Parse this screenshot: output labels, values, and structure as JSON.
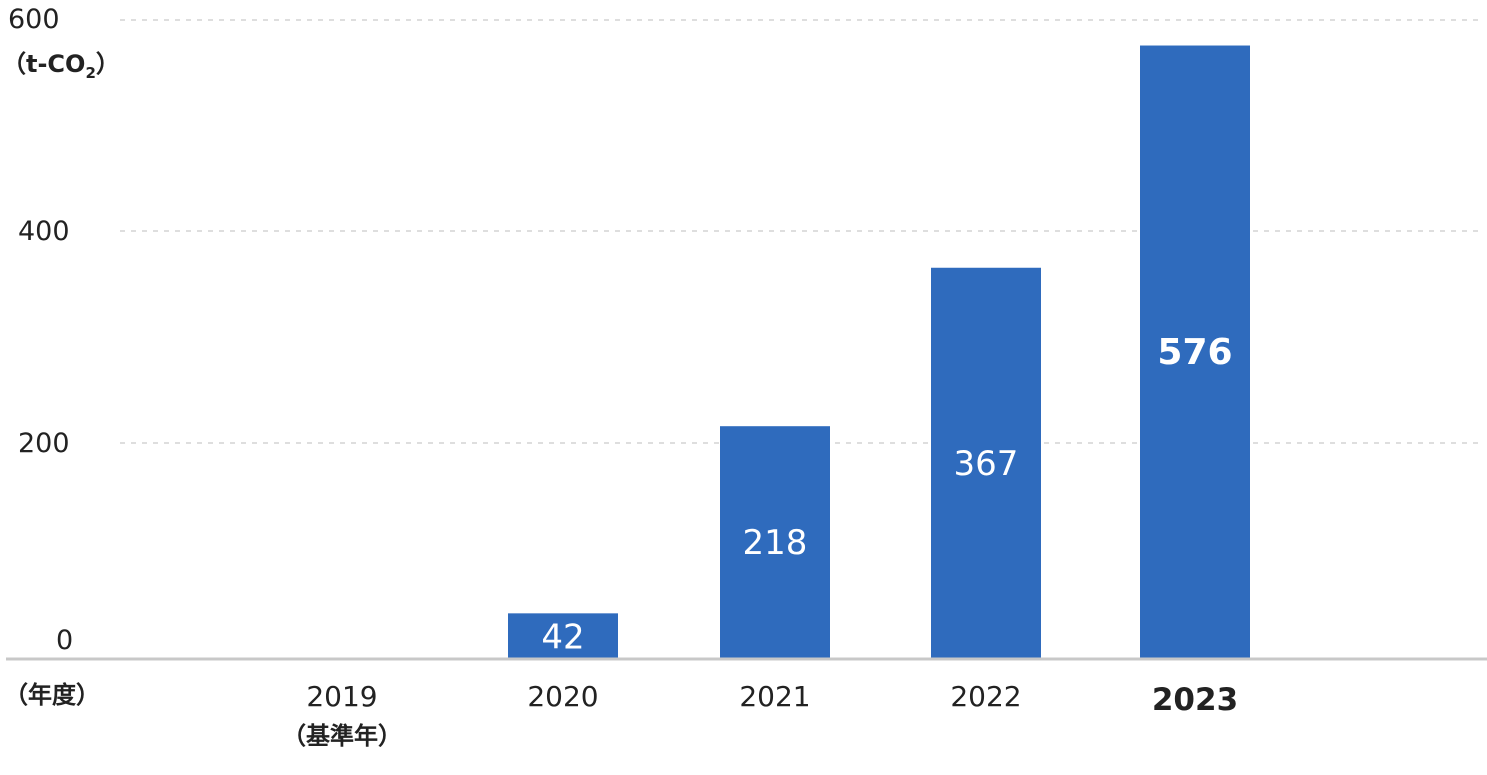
{
  "chart_data": {
    "type": "bar",
    "unit": "（t-CO",
    "unit_sub": "2",
    "unit_close": "）",
    "x_unit": "（年度）",
    "yticks": [
      "0",
      "200",
      "400",
      "600"
    ],
    "ylim": [
      0,
      600
    ],
    "grid": true,
    "bar_color": "#2f6bbd",
    "categories": [
      {
        "label": "2019",
        "sublabel": "（基準年）",
        "value": 0,
        "value_label": "",
        "bold": false
      },
      {
        "label": "2020",
        "sublabel": "",
        "value": 42,
        "value_label": "42",
        "bold": false
      },
      {
        "label": "2021",
        "sublabel": "",
        "value": 218,
        "value_label": "218",
        "bold": false
      },
      {
        "label": "2022",
        "sublabel": "",
        "value": 367,
        "value_label": "367",
        "bold": false
      },
      {
        "label": "2023",
        "sublabel": "",
        "value": 576,
        "value_label": "576",
        "bold": true
      }
    ]
  }
}
